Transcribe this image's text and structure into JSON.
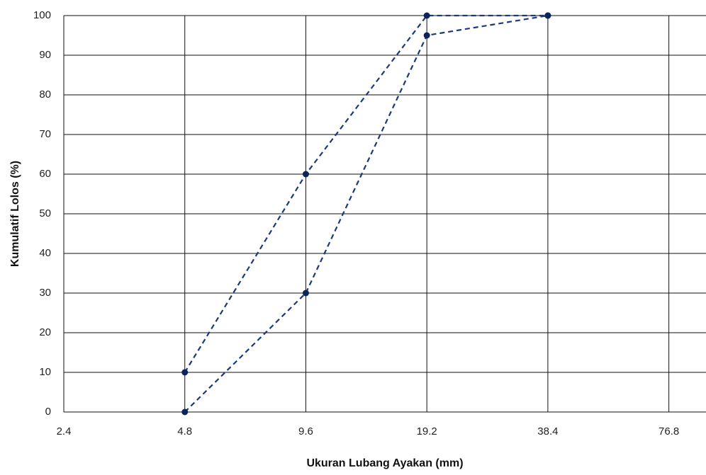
{
  "chart_data": {
    "type": "line",
    "x_label": "Ukuran Lubang Ayakan (mm)",
    "y_label": "Kumulatif Lolos (%)",
    "xscale": "log",
    "x": [
      4.8,
      9.6,
      19.2,
      38.4
    ],
    "series": [
      {
        "color": "#1c3a78",
        "values": [
          10,
          60,
          100,
          100
        ]
      },
      {
        "color": "#1c3a78",
        "values": [
          0,
          30,
          95,
          100
        ]
      }
    ],
    "xlim": [
      2.4,
      95
    ],
    "xticks": [
      2.4,
      4.8,
      9.6,
      19.2,
      38.4,
      76.8
    ],
    "ylim": [
      0,
      100
    ],
    "yticks": [
      0,
      10,
      20,
      30,
      40,
      50,
      60,
      70,
      80,
      90,
      100
    ],
    "grid": true,
    "line_style": "dashed"
  }
}
